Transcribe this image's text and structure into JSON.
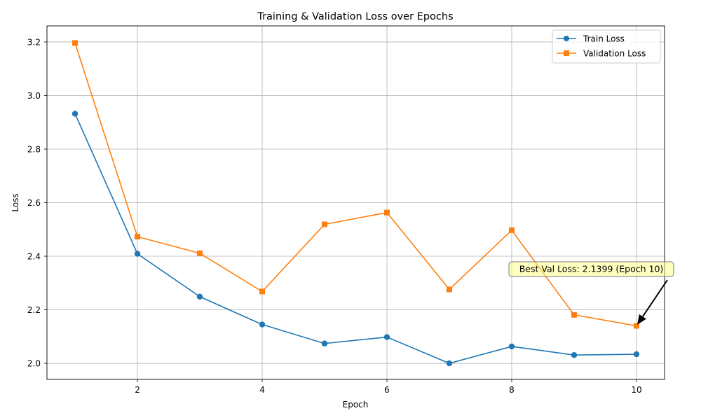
{
  "chart_data": {
    "type": "line",
    "title": "Training & Validation Loss over Epochs",
    "xlabel": "Epoch",
    "ylabel": "Loss",
    "xlim": [
      0.55,
      10.45
    ],
    "ylim": [
      1.94,
      3.26
    ],
    "xticks": [
      2,
      4,
      6,
      8,
      10
    ],
    "yticks": [
      2.0,
      2.2,
      2.4,
      2.6,
      2.8,
      3.0,
      3.2
    ],
    "grid": true,
    "legend_position": "top-right",
    "x": [
      1,
      2,
      3,
      4,
      5,
      6,
      7,
      8,
      9,
      10
    ],
    "series": [
      {
        "name": "Train Loss",
        "color": "#1f77b4",
        "marker": "circle",
        "values": [
          2.932,
          2.409,
          2.249,
          2.145,
          2.074,
          2.098,
          2.0,
          2.063,
          2.031,
          2.034
        ]
      },
      {
        "name": "Validation Loss",
        "color": "#ff7f0e",
        "marker": "square",
        "values": [
          3.196,
          2.473,
          2.411,
          2.268,
          2.519,
          2.563,
          2.276,
          2.497,
          2.181,
          2.1399
        ]
      }
    ],
    "annotation": {
      "text": "Best Val Loss: 2.1399 (Epoch 10)",
      "point": [
        10,
        2.1399
      ],
      "box_color": "#ffff7f"
    }
  }
}
